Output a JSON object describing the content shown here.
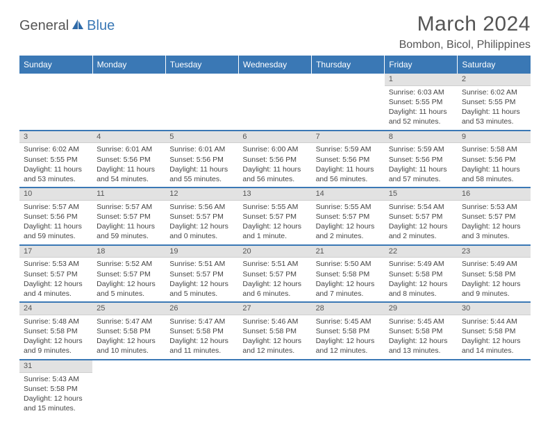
{
  "brand": {
    "part1": "General",
    "part2": "Blue"
  },
  "title": "March 2024",
  "location": "Bombon, Bicol, Philippines",
  "colors": {
    "header_bg": "#3a78b5",
    "header_text": "#ffffff",
    "daynum_bg": "#e2e2e2",
    "border": "#3a78b5",
    "text": "#444444"
  },
  "weekdays": [
    "Sunday",
    "Monday",
    "Tuesday",
    "Wednesday",
    "Thursday",
    "Friday",
    "Saturday"
  ],
  "weeks": [
    [
      null,
      null,
      null,
      null,
      null,
      {
        "n": "1",
        "sunrise": "6:03 AM",
        "sunset": "5:55 PM",
        "daylight": "11 hours and 52 minutes."
      },
      {
        "n": "2",
        "sunrise": "6:02 AM",
        "sunset": "5:55 PM",
        "daylight": "11 hours and 53 minutes."
      }
    ],
    [
      {
        "n": "3",
        "sunrise": "6:02 AM",
        "sunset": "5:55 PM",
        "daylight": "11 hours and 53 minutes."
      },
      {
        "n": "4",
        "sunrise": "6:01 AM",
        "sunset": "5:56 PM",
        "daylight": "11 hours and 54 minutes."
      },
      {
        "n": "5",
        "sunrise": "6:01 AM",
        "sunset": "5:56 PM",
        "daylight": "11 hours and 55 minutes."
      },
      {
        "n": "6",
        "sunrise": "6:00 AM",
        "sunset": "5:56 PM",
        "daylight": "11 hours and 56 minutes."
      },
      {
        "n": "7",
        "sunrise": "5:59 AM",
        "sunset": "5:56 PM",
        "daylight": "11 hours and 56 minutes."
      },
      {
        "n": "8",
        "sunrise": "5:59 AM",
        "sunset": "5:56 PM",
        "daylight": "11 hours and 57 minutes."
      },
      {
        "n": "9",
        "sunrise": "5:58 AM",
        "sunset": "5:56 PM",
        "daylight": "11 hours and 58 minutes."
      }
    ],
    [
      {
        "n": "10",
        "sunrise": "5:57 AM",
        "sunset": "5:56 PM",
        "daylight": "11 hours and 59 minutes."
      },
      {
        "n": "11",
        "sunrise": "5:57 AM",
        "sunset": "5:57 PM",
        "daylight": "11 hours and 59 minutes."
      },
      {
        "n": "12",
        "sunrise": "5:56 AM",
        "sunset": "5:57 PM",
        "daylight": "12 hours and 0 minutes."
      },
      {
        "n": "13",
        "sunrise": "5:55 AM",
        "sunset": "5:57 PM",
        "daylight": "12 hours and 1 minute."
      },
      {
        "n": "14",
        "sunrise": "5:55 AM",
        "sunset": "5:57 PM",
        "daylight": "12 hours and 2 minutes."
      },
      {
        "n": "15",
        "sunrise": "5:54 AM",
        "sunset": "5:57 PM",
        "daylight": "12 hours and 2 minutes."
      },
      {
        "n": "16",
        "sunrise": "5:53 AM",
        "sunset": "5:57 PM",
        "daylight": "12 hours and 3 minutes."
      }
    ],
    [
      {
        "n": "17",
        "sunrise": "5:53 AM",
        "sunset": "5:57 PM",
        "daylight": "12 hours and 4 minutes."
      },
      {
        "n": "18",
        "sunrise": "5:52 AM",
        "sunset": "5:57 PM",
        "daylight": "12 hours and 5 minutes."
      },
      {
        "n": "19",
        "sunrise": "5:51 AM",
        "sunset": "5:57 PM",
        "daylight": "12 hours and 5 minutes."
      },
      {
        "n": "20",
        "sunrise": "5:51 AM",
        "sunset": "5:57 PM",
        "daylight": "12 hours and 6 minutes."
      },
      {
        "n": "21",
        "sunrise": "5:50 AM",
        "sunset": "5:58 PM",
        "daylight": "12 hours and 7 minutes."
      },
      {
        "n": "22",
        "sunrise": "5:49 AM",
        "sunset": "5:58 PM",
        "daylight": "12 hours and 8 minutes."
      },
      {
        "n": "23",
        "sunrise": "5:49 AM",
        "sunset": "5:58 PM",
        "daylight": "12 hours and 9 minutes."
      }
    ],
    [
      {
        "n": "24",
        "sunrise": "5:48 AM",
        "sunset": "5:58 PM",
        "daylight": "12 hours and 9 minutes."
      },
      {
        "n": "25",
        "sunrise": "5:47 AM",
        "sunset": "5:58 PM",
        "daylight": "12 hours and 10 minutes."
      },
      {
        "n": "26",
        "sunrise": "5:47 AM",
        "sunset": "5:58 PM",
        "daylight": "12 hours and 11 minutes."
      },
      {
        "n": "27",
        "sunrise": "5:46 AM",
        "sunset": "5:58 PM",
        "daylight": "12 hours and 12 minutes."
      },
      {
        "n": "28",
        "sunrise": "5:45 AM",
        "sunset": "5:58 PM",
        "daylight": "12 hours and 12 minutes."
      },
      {
        "n": "29",
        "sunrise": "5:45 AM",
        "sunset": "5:58 PM",
        "daylight": "12 hours and 13 minutes."
      },
      {
        "n": "30",
        "sunrise": "5:44 AM",
        "sunset": "5:58 PM",
        "daylight": "12 hours and 14 minutes."
      }
    ],
    [
      {
        "n": "31",
        "sunrise": "5:43 AM",
        "sunset": "5:58 PM",
        "daylight": "12 hours and 15 minutes."
      },
      null,
      null,
      null,
      null,
      null,
      null
    ]
  ]
}
